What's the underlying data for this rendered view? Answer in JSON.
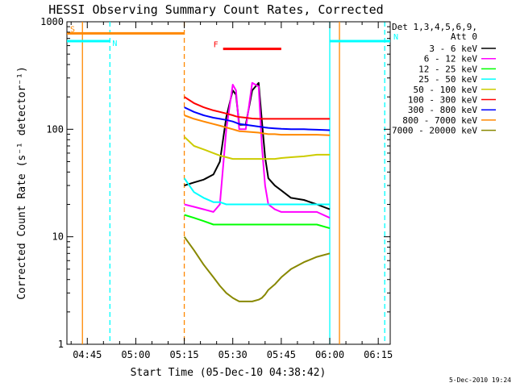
{
  "chart_data": {
    "type": "line",
    "title": "HESSI Observing Summary Count Rates, Corrected",
    "xlabel": "Start Time (05-Dec-10 04:38:42)",
    "ylabel": "Corrected Count Rate (s⁻¹ detector⁻¹)",
    "footer": "5-Dec-2010 19:24",
    "y_scale": "log",
    "xlim_minutes": [
      38.7,
      138.7
    ],
    "ylim": [
      1,
      1000
    ],
    "x_ticks": [
      {
        "label": "04:45",
        "minutes": 45
      },
      {
        "label": "05:00",
        "minutes": 60
      },
      {
        "label": "05:15",
        "minutes": 75
      },
      {
        "label": "05:30",
        "minutes": 90
      },
      {
        "label": "05:45",
        "minutes": 105
      },
      {
        "label": "06:00",
        "minutes": 120
      },
      {
        "label": "06:15",
        "minutes": 135
      }
    ],
    "y_ticks": [
      {
        "label": "1",
        "value": 1
      },
      {
        "label": "10",
        "value": 10
      },
      {
        "label": "100",
        "value": 100
      },
      {
        "label": "1000",
        "value": 1000
      }
    ],
    "legend": {
      "placement": "right",
      "header": [
        "Det 1,3,4,5,6,9,",
        "Att 0"
      ],
      "entries": [
        {
          "label": "3 - 6 keV",
          "color": "#000000"
        },
        {
          "label": "6 - 12 keV",
          "color": "#ff00ff"
        },
        {
          "label": "12 - 25 keV",
          "color": "#00ff00"
        },
        {
          "label": "25 - 50 keV",
          "color": "#00ffff"
        },
        {
          "label": "50 - 100 keV",
          "color": "#cccc00"
        },
        {
          "label": "100 - 300 keV",
          "color": "#ff0000"
        },
        {
          "label": "300 - 800 keV",
          "color": "#0000ff"
        },
        {
          "label": "800 - 7000 keV",
          "color": "#ff8800"
        },
        {
          "label": "7000 - 20000 keV",
          "color": "#888800"
        }
      ]
    },
    "x": [
      75,
      78,
      81,
      84,
      86,
      88,
      90,
      91,
      92,
      94,
      96,
      98,
      99,
      100,
      101,
      103,
      105,
      108,
      112,
      116,
      120
    ],
    "series": [
      {
        "color": "#000000",
        "values": [
          30,
          32,
          34,
          38,
          50,
          130,
          230,
          210,
          110,
          110,
          230,
          270,
          120,
          55,
          35,
          30,
          27,
          23,
          22,
          20,
          18
        ]
      },
      {
        "color": "#ff00ff",
        "values": [
          20,
          19,
          18,
          17,
          20,
          100,
          260,
          230,
          100,
          100,
          270,
          250,
          70,
          30,
          20,
          18,
          17,
          17,
          17,
          17,
          15
        ]
      },
      {
        "color": "#00ff00",
        "values": [
          16,
          15,
          14,
          13,
          13,
          13,
          13,
          13,
          13,
          13,
          13,
          13,
          13,
          13,
          13,
          13,
          13,
          13,
          13,
          13,
          12
        ]
      },
      {
        "color": "#00ffff",
        "values": [
          35,
          26,
          23,
          21,
          21,
          20,
          20,
          20,
          20,
          20,
          20,
          20,
          20,
          20,
          20,
          20,
          20,
          20,
          20,
          20,
          20
        ]
      },
      {
        "color": "#cccc00",
        "values": [
          85,
          70,
          65,
          60,
          57,
          55,
          53,
          53,
          53,
          53,
          53,
          53,
          53,
          53,
          53,
          53,
          54,
          55,
          56,
          58,
          58
        ]
      },
      {
        "color": "#ff0000",
        "values": [
          200,
          175,
          160,
          150,
          145,
          140,
          135,
          132,
          130,
          128,
          126,
          125,
          125,
          125,
          125,
          125,
          125,
          125,
          125,
          125,
          125
        ]
      },
      {
        "color": "#0000ff",
        "values": [
          160,
          145,
          135,
          128,
          125,
          122,
          118,
          115,
          112,
          110,
          108,
          106,
          105,
          104,
          103,
          102,
          101,
          100,
          100,
          99,
          98
        ]
      },
      {
        "color": "#ff8800",
        "values": [
          135,
          125,
          118,
          112,
          108,
          104,
          100,
          98,
          96,
          95,
          94,
          93,
          92,
          91,
          90,
          90,
          89,
          89,
          89,
          89,
          88
        ]
      },
      {
        "color": "#888800",
        "values": [
          10,
          7.5,
          5.5,
          4.2,
          3.5,
          3,
          2.7,
          2.6,
          2.5,
          2.5,
          2.5,
          2.6,
          2.7,
          2.9,
          3.2,
          3.6,
          4.2,
          5,
          5.8,
          6.5,
          7
        ]
      }
    ],
    "annotations": [
      {
        "label": "S",
        "color": "#ff8800",
        "kind": "segment",
        "from": 38.7,
        "to": 75,
        "y": 780
      },
      {
        "label": "N",
        "color": "#00ffff",
        "kind": "segment",
        "from": 38.7,
        "to": 52,
        "y": 660
      },
      {
        "label": "N",
        "color": "#00ffff",
        "kind": "segment",
        "from": 120,
        "to": 138.7,
        "y": 660
      },
      {
        "label": "F",
        "color": "#ff0000",
        "kind": "segment",
        "from": 87,
        "to": 105,
        "y": 560
      }
    ],
    "markers": [
      {
        "color": "#ff8800",
        "style": "solid",
        "minutes": 43.5
      },
      {
        "color": "#ff8800",
        "style": "dashed",
        "minutes": 75
      },
      {
        "color": "#00ffff",
        "style": "dashed",
        "minutes": 52
      },
      {
        "color": "#00ffff",
        "style": "solid",
        "minutes": 120
      },
      {
        "color": "#ff8800",
        "style": "solid",
        "minutes": 123
      },
      {
        "color": "#00ffff",
        "style": "dashed",
        "minutes": 137
      }
    ]
  }
}
